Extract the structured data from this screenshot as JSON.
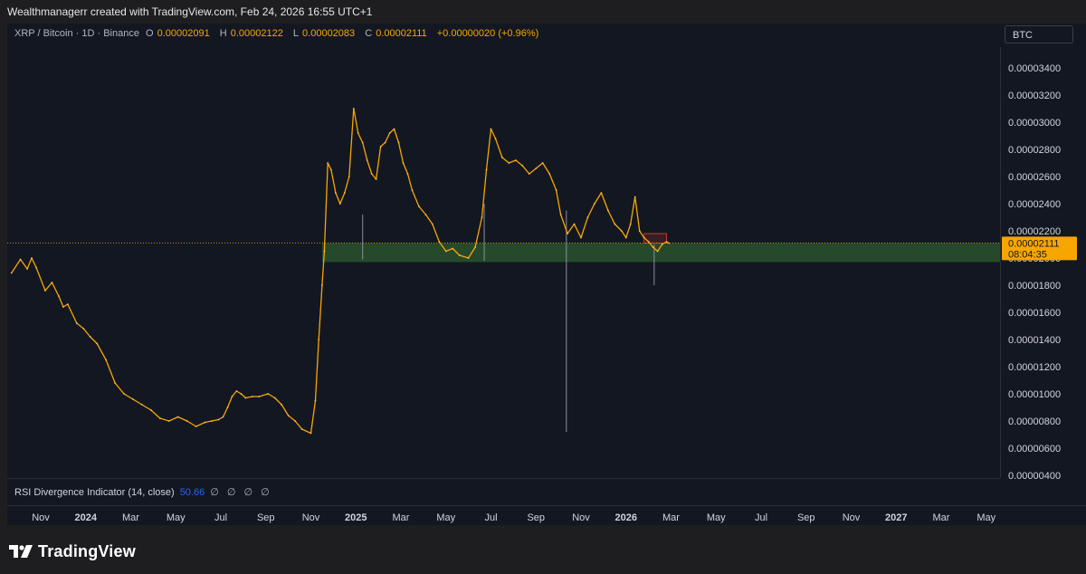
{
  "credit": "Wealthmanagerr created with TradingView.com, Feb 24, 2026 16:55 UTC+1",
  "legend": {
    "symbol": "XRP / Bitcoin · 1D · Binance",
    "open_label": "O",
    "open": "0.00002091",
    "high_label": "H",
    "high": "0.00002122",
    "low_label": "L",
    "low": "0.00002083",
    "close_label": "C",
    "close": "0.00002111",
    "change": "+0.00000020 (+0.96%)"
  },
  "currency_button": "BTC",
  "last_price": {
    "value": "0.00002111",
    "countdown": "08:04:35"
  },
  "rsi": {
    "label": "RSI Divergence Indicator (14, close)",
    "value": "50.66",
    "placeholders": "∅ ∅ ∅ ∅"
  },
  "brand": "TradingView",
  "colors": {
    "candle": "#f7a600",
    "zone": "#2f5f30",
    "last_price_tag": "#f7a600",
    "rsi_value": "#2962ff"
  },
  "chart_data": {
    "type": "line",
    "title": "XRP / Bitcoin · 1D · Binance",
    "y_ticks": [
      "0.00000400",
      "0.00000600",
      "0.00000800",
      "0.00001000",
      "0.00001200",
      "0.00001400",
      "0.00001600",
      "0.00001800",
      "0.00002000",
      "0.00002200",
      "0.00002400",
      "0.00002600",
      "0.00002800",
      "0.00003000",
      "0.00003200",
      "0.00003400"
    ],
    "ylim": [
      3.9e-06,
      3.55e-05
    ],
    "x_ticks": [
      {
        "label": "Nov",
        "t": 0
      },
      {
        "label": "2024",
        "t": 2,
        "bold": true
      },
      {
        "label": "Mar",
        "t": 4
      },
      {
        "label": "May",
        "t": 6
      },
      {
        "label": "Jul",
        "t": 8
      },
      {
        "label": "Sep",
        "t": 10
      },
      {
        "label": "Nov",
        "t": 12
      },
      {
        "label": "2025",
        "t": 14,
        "bold": true
      },
      {
        "label": "Mar",
        "t": 16
      },
      {
        "label": "May",
        "t": 18
      },
      {
        "label": "Jul",
        "t": 20
      },
      {
        "label": "Sep",
        "t": 22
      },
      {
        "label": "Nov",
        "t": 24
      },
      {
        "label": "2026",
        "t": 26,
        "bold": true
      },
      {
        "label": "Mar",
        "t": 28
      },
      {
        "label": "May",
        "t": 30
      },
      {
        "label": "Jul",
        "t": 32
      },
      {
        "label": "Sep",
        "t": 34
      },
      {
        "label": "Nov",
        "t": 36
      },
      {
        "label": "2027",
        "t": 38,
        "bold": true
      },
      {
        "label": "Mar",
        "t": 40
      },
      {
        "label": "May",
        "t": 42
      }
    ],
    "x_unit": "months since Nov 1, 2023",
    "series": [
      {
        "points": [
          [
            -1.3,
            1.89e-05
          ],
          [
            -0.9,
            1.99e-05
          ],
          [
            -0.6,
            1.92e-05
          ],
          [
            -0.4,
            2e-05
          ],
          [
            -0.2,
            1.93e-05
          ],
          [
            0.2,
            1.76e-05
          ],
          [
            0.5,
            1.82e-05
          ],
          [
            0.8,
            1.72e-05
          ],
          [
            1.0,
            1.64e-05
          ],
          [
            1.2,
            1.66e-05
          ],
          [
            1.6,
            1.52e-05
          ],
          [
            1.9,
            1.48e-05
          ],
          [
            2.2,
            1.42e-05
          ],
          [
            2.5,
            1.37e-05
          ],
          [
            2.9,
            1.25e-05
          ],
          [
            3.3,
            1.08e-05
          ],
          [
            3.7,
            1e-05
          ],
          [
            4.1,
            9.6e-06
          ],
          [
            4.5,
            9.2e-06
          ],
          [
            4.9,
            8.8e-06
          ],
          [
            5.3,
            8.2e-06
          ],
          [
            5.7,
            8e-06
          ],
          [
            6.1,
            8.3e-06
          ],
          [
            6.5,
            8e-06
          ],
          [
            6.9,
            7.6e-06
          ],
          [
            7.3,
            7.9e-06
          ],
          [
            7.6,
            8e-06
          ],
          [
            7.9,
            8.1e-06
          ],
          [
            8.1,
            8.3e-06
          ],
          [
            8.3,
            9e-06
          ],
          [
            8.5,
            9.8e-06
          ],
          [
            8.7,
            1.02e-05
          ],
          [
            8.9,
            1e-05
          ],
          [
            9.1,
            9.7e-06
          ],
          [
            9.4,
            9.8e-06
          ],
          [
            9.7,
            9.8e-06
          ],
          [
            10.1,
            1e-05
          ],
          [
            10.4,
            9.7e-06
          ],
          [
            10.7,
            9.2e-06
          ],
          [
            11.0,
            8.4e-06
          ],
          [
            11.3,
            8e-06
          ],
          [
            11.6,
            7.4e-06
          ],
          [
            12.0,
            7.1e-06
          ],
          [
            12.2,
            9.5e-06
          ],
          [
            12.35,
            1.4e-05
          ],
          [
            12.5,
            1.8e-05
          ],
          [
            12.6,
            2.05e-05
          ],
          [
            12.75,
            2.7e-05
          ],
          [
            12.9,
            2.65e-05
          ],
          [
            13.1,
            2.48e-05
          ],
          [
            13.3,
            2.4e-05
          ],
          [
            13.5,
            2.48e-05
          ],
          [
            13.7,
            2.6e-05
          ],
          [
            13.9,
            3.1e-05
          ],
          [
            14.1,
            2.92e-05
          ],
          [
            14.3,
            2.85e-05
          ],
          [
            14.5,
            2.72e-05
          ],
          [
            14.7,
            2.62e-05
          ],
          [
            14.9,
            2.58e-05
          ],
          [
            15.1,
            2.82e-05
          ],
          [
            15.3,
            2.85e-05
          ],
          [
            15.5,
            2.92e-05
          ],
          [
            15.7,
            2.95e-05
          ],
          [
            15.9,
            2.85e-05
          ],
          [
            16.1,
            2.7e-05
          ],
          [
            16.3,
            2.62e-05
          ],
          [
            16.5,
            2.5e-05
          ],
          [
            16.8,
            2.38e-05
          ],
          [
            17.1,
            2.32e-05
          ],
          [
            17.4,
            2.25e-05
          ],
          [
            17.7,
            2.12e-05
          ],
          [
            18.0,
            2.05e-05
          ],
          [
            18.3,
            2.07e-05
          ],
          [
            18.6,
            2.02e-05
          ],
          [
            19.0,
            2e-05
          ],
          [
            19.3,
            2.08e-05
          ],
          [
            19.6,
            2.3e-05
          ],
          [
            19.8,
            2.65e-05
          ],
          [
            20.0,
            2.95e-05
          ],
          [
            20.2,
            2.88e-05
          ],
          [
            20.5,
            2.74e-05
          ],
          [
            20.8,
            2.7e-05
          ],
          [
            21.1,
            2.72e-05
          ],
          [
            21.4,
            2.68e-05
          ],
          [
            21.7,
            2.62e-05
          ],
          [
            22.0,
            2.66e-05
          ],
          [
            22.3,
            2.7e-05
          ],
          [
            22.6,
            2.62e-05
          ],
          [
            22.9,
            2.5e-05
          ],
          [
            23.1,
            2.32e-05
          ],
          [
            23.4,
            2.18e-05
          ],
          [
            23.7,
            2.25e-05
          ],
          [
            24.0,
            2.15e-05
          ],
          [
            24.3,
            2.3e-05
          ],
          [
            24.6,
            2.4e-05
          ],
          [
            24.9,
            2.48e-05
          ],
          [
            25.2,
            2.35e-05
          ],
          [
            25.5,
            2.25e-05
          ],
          [
            25.8,
            2.2e-05
          ],
          [
            26.0,
            2.15e-05
          ],
          [
            26.2,
            2.25e-05
          ],
          [
            26.4,
            2.45e-05
          ],
          [
            26.6,
            2.2e-05
          ],
          [
            26.8,
            2.15e-05
          ],
          [
            27.0,
            2.12e-05
          ],
          [
            27.2,
            2.08e-05
          ],
          [
            27.4,
            2.05e-05
          ],
          [
            27.6,
            2.1e-05
          ],
          [
            27.8,
            2.12e-05
          ],
          [
            27.9,
            2.11e-05
          ]
        ]
      }
    ],
    "wicks": [
      {
        "t": 23.35,
        "low": 7.2e-06,
        "high": 2.35e-05
      },
      {
        "t": 27.25,
        "low": 1.8e-05,
        "high": 2.1e-05
      },
      {
        "t": 14.3,
        "low": 1.99e-05,
        "high": 2.32e-05
      },
      {
        "t": 19.7,
        "low": 1.98e-05,
        "high": 2.4e-05
      }
    ],
    "support_zone": {
      "t0": 12.5,
      "low": 1.97e-05,
      "high": 2.11e-05
    },
    "resistance_box": {
      "t0": 26.8,
      "t1": 27.8,
      "low": 2.11e-05,
      "high": 2.18e-05
    },
    "last_price": 2.111e-05,
    "grid": false,
    "legend": "none"
  }
}
